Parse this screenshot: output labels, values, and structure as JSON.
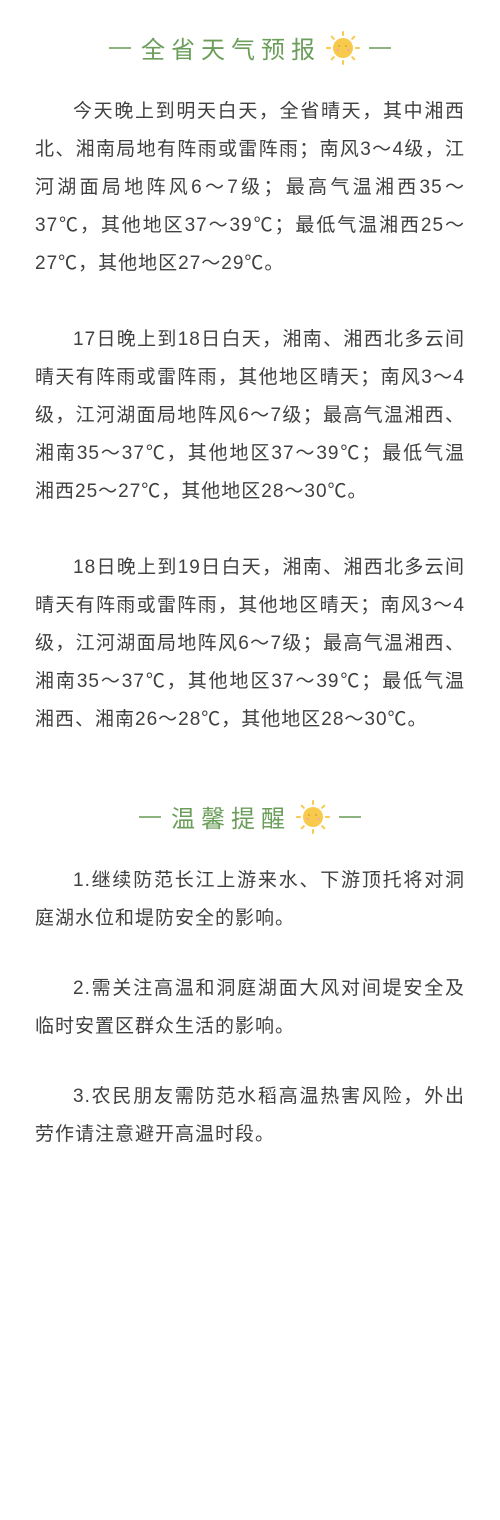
{
  "forecast": {
    "title": "全省天气预报",
    "title_color": "#6b9e5a",
    "title_fontsize": 24,
    "title_letter_spacing": 6,
    "line_color": "#8db37e",
    "sun_color": "#f7c94c",
    "paragraphs": [
      "今天晚上到明天白天，全省晴天，其中湘西北、湘南局地有阵雨或雷阵雨；南风3～4级，江河湖面局地阵风6～7级；最高气温湘西35～37℃，其他地区37～39℃；最低气温湘西25～27℃，其他地区27～29℃。",
      "17日晚上到18日白天，湘南、湘西北多云间晴天有阵雨或雷阵雨，其他地区晴天；南风3～4级，江河湖面局地阵风6～7级；最高气温湘西、湘南35～37℃，其他地区37～39℃；最低气温湘西25～27℃，其他地区28～30℃。",
      "18日晚上到19日白天，湘南、湘西北多云间晴天有阵雨或雷阵雨，其他地区晴天；南风3～4级，江河湖面局地阵风6～7级；最高气温湘西、湘南35～37℃，其他地区37～39℃；最低气温湘西、湘南26～28℃，其他地区28～30℃。"
    ]
  },
  "tips": {
    "title": "温馨提醒",
    "items": [
      "1.继续防范长江上游来水、下游顶托将对洞庭湖水位和堤防安全的影响。",
      "2.需关注高温和洞庭湖面大风对间堤安全及临时安置区群众生活的影响。",
      "3.农民朋友需防范水稻高温热害风险，外出劳作请注意避开高温时段。"
    ]
  },
  "styling": {
    "body_text_color": "#404040",
    "body_fontsize": 19,
    "body_line_height": 2.0,
    "text_indent_em": 2,
    "background_color": "#ffffff"
  }
}
